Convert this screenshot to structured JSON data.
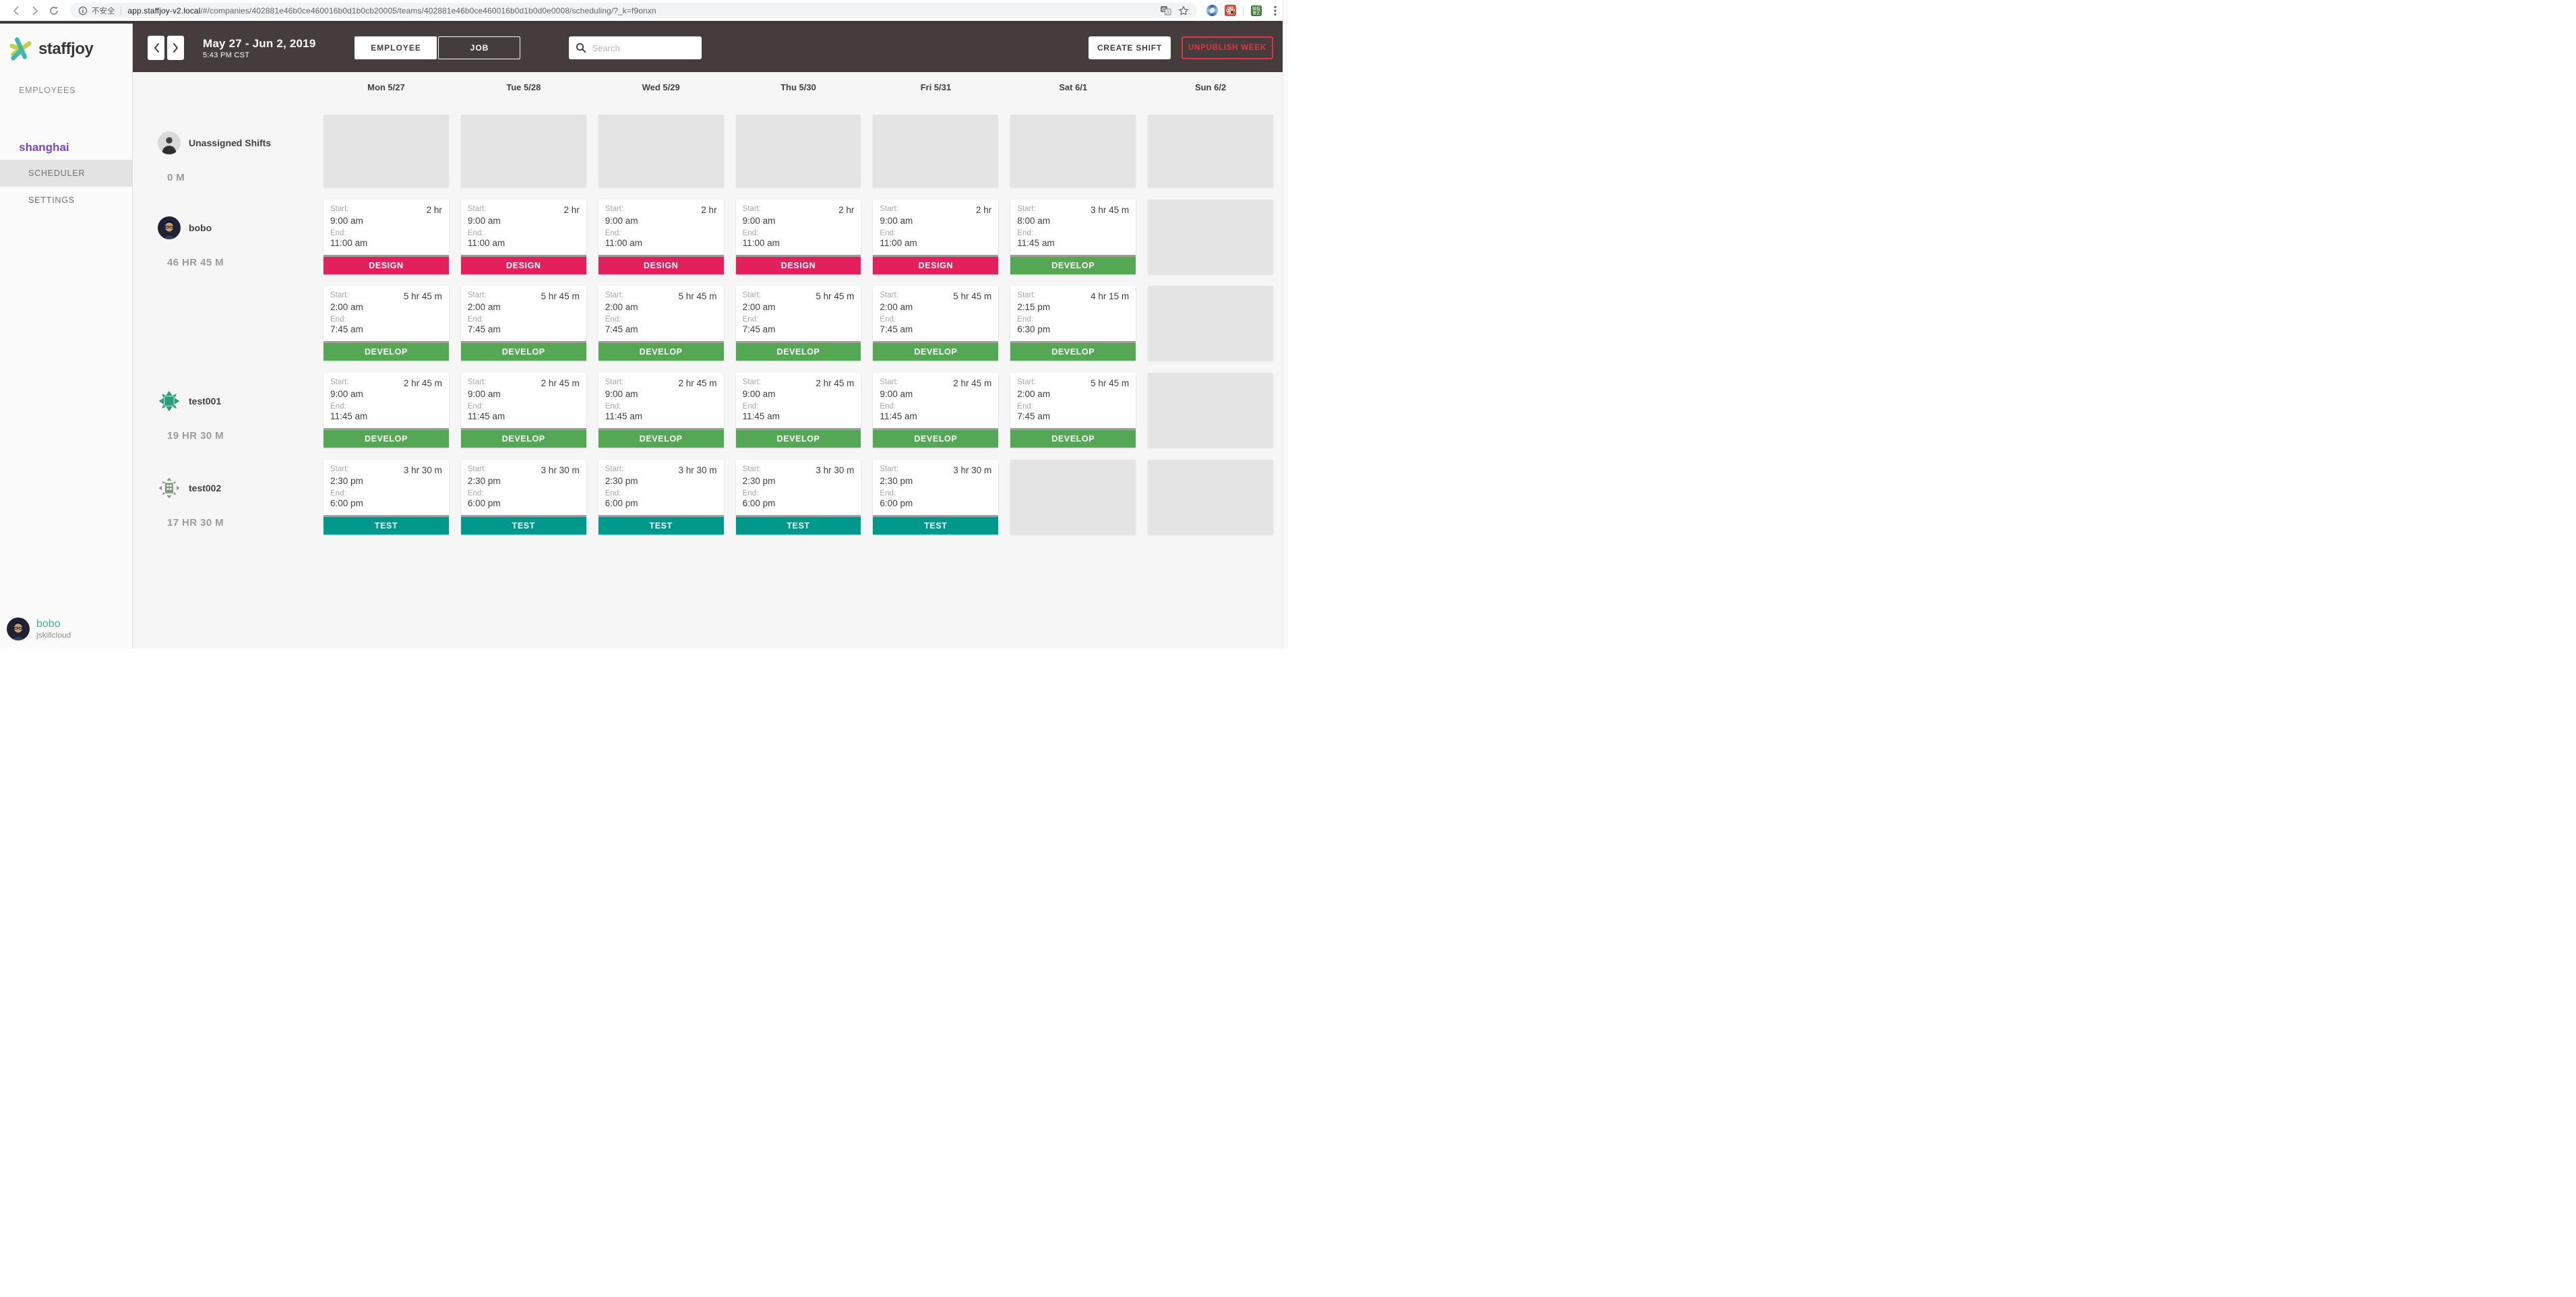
{
  "browser": {
    "security_label": "不安全",
    "url_domain": "app.staffjoy-v2.local",
    "url_path": "/#/companies/402881e46b0ce460016b0d1b0cb20005/teams/402881e46b0ce460016b0d1b0d0e0008/scheduling/?_k=f9onxn",
    "extension_green_text": "微掘课艺"
  },
  "sidebar": {
    "logo_text": "staffjoy",
    "employees_label": "EMPLOYEES",
    "team_name": "shanghai",
    "scheduler_label": "SCHEDULER",
    "settings_label": "SETTINGS",
    "user": {
      "name": "bobo",
      "company": "jskillcloud"
    }
  },
  "header": {
    "date_range": "May 27 - Jun 2, 2019",
    "time": "5:43 PM CST",
    "employee_toggle": "EMPLOYEE",
    "job_toggle": "JOB",
    "search_placeholder": "Search",
    "create_shift": "CREATE SHIFT",
    "unpublish_week": "UNPUBLISH WEEK"
  },
  "job_colors": {
    "DESIGN": "#E2215C",
    "DEVELOP": "#54A754",
    "TEST": "#00988A"
  },
  "schedule": {
    "card_labels": {
      "start": "Start:",
      "end": "End:"
    },
    "days": [
      "Mon 5/27",
      "Tue 5/28",
      "Wed 5/29",
      "Thu 5/30",
      "Fri 5/31",
      "Sat 6/1",
      "Sun 6/2"
    ],
    "sections": [
      {
        "name": "Unassigned Shifts",
        "hours": "0 M",
        "avatar": "unassigned",
        "shift_rows": [
          [
            {
              "placeholder": true
            },
            {
              "placeholder": true
            },
            {
              "placeholder": true
            },
            {
              "placeholder": true
            },
            {
              "placeholder": true
            },
            {
              "placeholder": true
            },
            {
              "placeholder": true
            }
          ]
        ]
      },
      {
        "name": "bobo",
        "hours": "46 HR 45 M",
        "avatar": "bobo",
        "shift_rows": [
          [
            {
              "start": "9:00 am",
              "end": "11:00 am",
              "duration": "2 hr",
              "job": "DESIGN"
            },
            {
              "start": "9:00 am",
              "end": "11:00 am",
              "duration": "2 hr",
              "job": "DESIGN"
            },
            {
              "start": "9:00 am",
              "end": "11:00 am",
              "duration": "2 hr",
              "job": "DESIGN"
            },
            {
              "start": "9:00 am",
              "end": "11:00 am",
              "duration": "2 hr",
              "job": "DESIGN"
            },
            {
              "start": "9:00 am",
              "end": "11:00 am",
              "duration": "2 hr",
              "job": "DESIGN"
            },
            {
              "start": "8:00 am",
              "end": "11:45 am",
              "duration": "3 hr 45 m",
              "job": "DEVELOP"
            },
            {
              "placeholder": true
            }
          ],
          [
            {
              "start": "2:00 am",
              "end": "7:45 am",
              "duration": "5 hr 45 m",
              "job": "DEVELOP"
            },
            {
              "start": "2:00 am",
              "end": "7:45 am",
              "duration": "5 hr 45 m",
              "job": "DEVELOP"
            },
            {
              "start": "2:00 am",
              "end": "7:45 am",
              "duration": "5 hr 45 m",
              "job": "DEVELOP"
            },
            {
              "start": "2:00 am",
              "end": "7:45 am",
              "duration": "5 hr 45 m",
              "job": "DEVELOP"
            },
            {
              "start": "2:00 am",
              "end": "7:45 am",
              "duration": "5 hr 45 m",
              "job": "DEVELOP"
            },
            {
              "start": "2:15 pm",
              "end": "6:30 pm",
              "duration": "4 hr 15 m",
              "job": "DEVELOP"
            },
            {
              "placeholder": true
            }
          ]
        ]
      },
      {
        "name": "test001",
        "hours": "19 HR 30 M",
        "avatar": "test001",
        "shift_rows": [
          [
            {
              "start": "9:00 am",
              "end": "11:45 am",
              "duration": "2 hr 45 m",
              "job": "DEVELOP"
            },
            {
              "start": "9:00 am",
              "end": "11:45 am",
              "duration": "2 hr 45 m",
              "job": "DEVELOP"
            },
            {
              "start": "9:00 am",
              "end": "11:45 am",
              "duration": "2 hr 45 m",
              "job": "DEVELOP"
            },
            {
              "start": "9:00 am",
              "end": "11:45 am",
              "duration": "2 hr 45 m",
              "job": "DEVELOP"
            },
            {
              "start": "9:00 am",
              "end": "11:45 am",
              "duration": "2 hr 45 m",
              "job": "DEVELOP"
            },
            {
              "start": "2:00 am",
              "end": "7:45 am",
              "duration": "5 hr 45 m",
              "job": "DEVELOP"
            },
            {
              "placeholder": true
            }
          ]
        ]
      },
      {
        "name": "test002",
        "hours": "17 HR 30 M",
        "avatar": "test002",
        "shift_rows": [
          [
            {
              "start": "2:30 pm",
              "end": "6:00 pm",
              "duration": "3 hr 30 m",
              "job": "TEST"
            },
            {
              "start": "2:30 pm",
              "end": "6:00 pm",
              "duration": "3 hr 30 m",
              "job": "TEST"
            },
            {
              "start": "2:30 pm",
              "end": "6:00 pm",
              "duration": "3 hr 30 m",
              "job": "TEST"
            },
            {
              "start": "2:30 pm",
              "end": "6:00 pm",
              "duration": "3 hr 30 m",
              "job": "TEST"
            },
            {
              "start": "2:30 pm",
              "end": "6:00 pm",
              "duration": "3 hr 30 m",
              "job": "TEST"
            },
            {
              "placeholder": true
            },
            {
              "placeholder": true
            }
          ]
        ]
      }
    ]
  }
}
